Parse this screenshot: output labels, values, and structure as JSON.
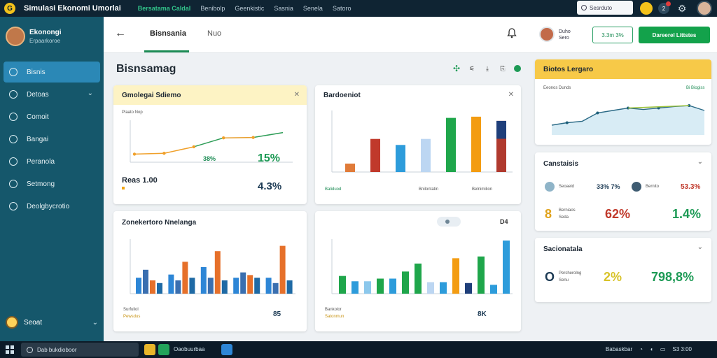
{
  "app": {
    "title": "Simulasi Ekonomi Umorlai",
    "menu": [
      "Bersatama Caldal",
      "Benibolp",
      "Geenkistic",
      "Sasnia",
      "Senela",
      "Satoro"
    ],
    "active_menu_index": 0,
    "search_placeholder": "Sesrduto",
    "notification_count": "2"
  },
  "sidebar": {
    "profile_name": "Ekonongi",
    "profile_sub": "Erpaarkoroe",
    "items": [
      {
        "label": "Bisnis",
        "active": true,
        "chevron": false
      },
      {
        "label": "Detoas",
        "active": false,
        "chevron": true
      },
      {
        "label": "Comoit",
        "active": false,
        "chevron": false
      },
      {
        "label": "Bangai",
        "active": false,
        "chevron": false
      },
      {
        "label": "Peranola",
        "active": false,
        "chevron": false
      },
      {
        "label": "Setmong",
        "active": false,
        "chevron": false
      },
      {
        "label": "Deolgbycrotio",
        "active": false,
        "chevron": false
      }
    ],
    "footer_user": "Seoat"
  },
  "header": {
    "back_label": "←",
    "tab_main": "Bisnsania",
    "tab_second": "Nuo",
    "user_name": "Duho",
    "user_sub": "Sero",
    "outline_button": "3.3m 3%",
    "cta_button": "Dareerel Littstes"
  },
  "section": {
    "title": "Bisnsamag"
  },
  "cards": {
    "line_card": {
      "title": "Gmolegai Sdiemo",
      "legend": "Plaato Nop",
      "value_label": "Reas 1.00",
      "inline_pct": "38%",
      "kpi_1": "15%",
      "kpi_2": "4.3%"
    },
    "bar_card": {
      "title": "Bardoeniot",
      "legend_a": "Baliduod",
      "legend_b": "Bnilontatin",
      "legend_c": "Belnimilion"
    },
    "grouped_card": {
      "title": "Zonekertoro Nnelanga",
      "footer": "Surfuliol",
      "footer_sub": "Pewsdus",
      "badge": "85"
    },
    "mixed_card": {
      "title": "D4",
      "footer": "Bankolor",
      "footer_sub": "Satonmun",
      "badge": "8K"
    },
    "trend_card": {
      "title": "Biotos Lergaro",
      "subtitle": "Eeonos Dunds",
      "tag": "Bi Biogiss"
    },
    "stats_card": {
      "title": "Canstaisis",
      "row1_label_a": "Seoaeid",
      "row1_val_a": "33% 7%",
      "row1_label_b": "Bernito",
      "row1_val_b": "53.3%",
      "row2_num": "8",
      "row2_label": "Berniaos",
      "row2_sub": "Seda",
      "row2_pct_a": "62%",
      "row2_pct_b": "1.4%"
    },
    "sector_card": {
      "title": "Sacionatala",
      "big_letter": "O",
      "label": "Percherolng",
      "sub": "Senu",
      "pct_a": "2%",
      "pct_b": "798,8%"
    }
  },
  "chart_data": [
    {
      "type": "line",
      "title": "Gmolegai Sdiemo",
      "x": [
        1,
        2,
        3,
        4,
        5,
        6
      ],
      "series": [
        {
          "name": "Plaato Nop",
          "values": [
            20,
            22,
            38,
            60,
            61,
            73
          ]
        }
      ],
      "ylim": [
        0,
        100
      ]
    },
    {
      "type": "bar",
      "title": "Bardoeniot",
      "categories": [
        "1",
        "2",
        "3",
        "4",
        "5",
        "6",
        "7"
      ],
      "values": [
        14,
        55,
        45,
        55,
        90,
        92,
        85
      ],
      "ylim": [
        0,
        100
      ]
    },
    {
      "type": "bar",
      "title": "Zonekertoro Nnelanga",
      "categories": [
        "1",
        "2",
        "3",
        "4",
        "5"
      ],
      "series": [
        {
          "values": [
            30,
            36,
            50,
            30,
            30
          ]
        },
        {
          "values": [
            45,
            25,
            30,
            40,
            20
          ]
        },
        {
          "values": [
            25,
            60,
            80,
            35,
            90
          ]
        },
        {
          "values": [
            20,
            30,
            25,
            30,
            25
          ]
        }
      ],
      "ylim": [
        0,
        100
      ]
    },
    {
      "type": "bar",
      "title": "D4",
      "categories": [
        "1",
        "2",
        "3",
        "4",
        "5",
        "6",
        "7",
        "8",
        "9",
        "10",
        "11",
        "12",
        "13",
        "14"
      ],
      "values": [
        40,
        28,
        28,
        34,
        34,
        50,
        68,
        26,
        26,
        80,
        24,
        84,
        20,
        120
      ],
      "ylim": [
        0,
        120
      ]
    },
    {
      "type": "area",
      "title": "Biotos Lergaro",
      "x": [
        1,
        2,
        3,
        4,
        5,
        6,
        7,
        8,
        9,
        10,
        11
      ],
      "values": [
        20,
        25,
        28,
        45,
        50,
        55,
        52,
        55,
        58,
        60,
        50
      ],
      "ylim": [
        0,
        80
      ]
    }
  ],
  "colors": {
    "accent_green": "#13a24b",
    "sidebar": "#15576b",
    "bar_colors": [
      "#e07b39",
      "#c0392b",
      "#2d9cdb",
      "#bcd6f2",
      "#1fa64b",
      "#f39c12",
      "#b03a2e"
    ]
  }
}
